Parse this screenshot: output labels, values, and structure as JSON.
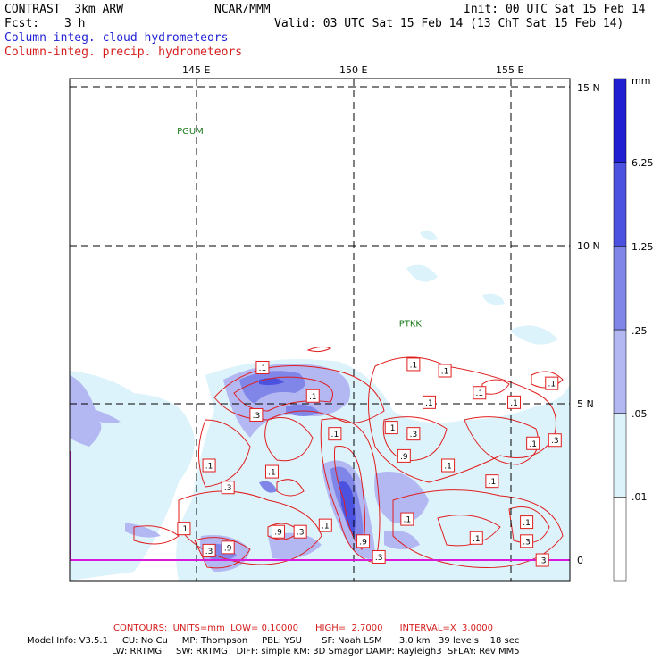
{
  "header": {
    "model": "CONTRAST  3km ARW",
    "center": "NCAR/MMM",
    "init": "Init: 00 UTC Sat 15 Feb 14",
    "fcst_label": "Fcst:",
    "fcst_value": "3 h",
    "valid": "Valid: 03 UTC Sat 15 Feb 14 (13 ChT Sat 15 Feb 14)",
    "field1": "Column-integ. cloud hydrometeors",
    "field2": "Column-integ. precip. hydrometeors"
  },
  "map": {
    "lon_labels": [
      "145 E",
      "150 E",
      "155 E"
    ],
    "lat_labels": [
      "15 N",
      "10 N",
      "5 N",
      "0"
    ],
    "stations": [
      {
        "name": "PGUM",
        "lon": 144.8,
        "lat": 13.5
      },
      {
        "name": "PTKK",
        "lon": 151.8,
        "lat": 7.4
      }
    ],
    "colors": {
      "land_shade": "#dcf3fb",
      "contour": "#e01e1e",
      "grid": "#000000",
      "frame": "#000000",
      "coast": "#d81ad8"
    },
    "contour_labels": [
      {
        "text": ".1",
        "lon": 147.1,
        "lat": 6.1
      },
      {
        "text": ".1",
        "lon": 148.7,
        "lat": 5.2
      },
      {
        "text": ".1",
        "lon": 149.4,
        "lat": 4.0
      },
      {
        "text": ".3",
        "lon": 146.9,
        "lat": 4.6
      },
      {
        "text": ".1",
        "lon": 147.4,
        "lat": 2.8
      },
      {
        "text": ".1",
        "lon": 145.4,
        "lat": 3.0
      },
      {
        "text": ".3",
        "lon": 146.0,
        "lat": 2.3
      },
      {
        "text": ".1",
        "lon": 144.6,
        "lat": 1.0
      },
      {
        "text": ".3",
        "lon": 145.4,
        "lat": 0.3
      },
      {
        "text": ".9",
        "lon": 146.0,
        "lat": 0.4
      },
      {
        "text": ".9",
        "lon": 147.6,
        "lat": 0.9
      },
      {
        "text": ".3",
        "lon": 148.3,
        "lat": 0.9
      },
      {
        "text": ".1",
        "lon": 149.1,
        "lat": 1.1
      },
      {
        "text": ".9",
        "lon": 150.3,
        "lat": 0.6
      },
      {
        "text": ".3",
        "lon": 150.8,
        "lat": 0.1
      },
      {
        "text": ".1",
        "lon": 151.7,
        "lat": 1.3
      },
      {
        "text": ".9",
        "lon": 151.6,
        "lat": 3.3
      },
      {
        "text": ".1",
        "lon": 151.2,
        "lat": 4.2
      },
      {
        "text": ".3",
        "lon": 151.9,
        "lat": 4.0
      },
      {
        "text": ".1",
        "lon": 151.9,
        "lat": 6.2
      },
      {
        "text": ".1",
        "lon": 152.4,
        "lat": 5.0
      },
      {
        "text": ".1",
        "lon": 152.9,
        "lat": 6.0
      },
      {
        "text": ".1",
        "lon": 154.0,
        "lat": 5.3
      },
      {
        "text": ".1",
        "lon": 155.1,
        "lat": 5.0
      },
      {
        "text": ".1",
        "lon": 153.0,
        "lat": 3.0
      },
      {
        "text": ".1",
        "lon": 154.4,
        "lat": 2.5
      },
      {
        "text": ".1",
        "lon": 155.7,
        "lat": 3.7
      },
      {
        "text": ".3",
        "lon": 156.4,
        "lat": 3.8
      },
      {
        "text": ".1",
        "lon": 156.3,
        "lat": 5.6
      },
      {
        "text": ".1",
        "lon": 155.5,
        "lat": 1.2
      },
      {
        "text": ".3",
        "lon": 155.5,
        "lat": 0.6
      },
      {
        "text": ".1",
        "lon": 153.9,
        "lat": 0.7
      },
      {
        "text": ".3",
        "lon": 156.0,
        "lat": 0.0
      }
    ]
  },
  "legend": {
    "unit": "mm",
    "levels": [
      ".01",
      ".05",
      ".25",
      "1.25",
      "6.25"
    ],
    "colors": [
      "#ffffff",
      "#dcf3fb",
      "#b3b8f3",
      "#7f86e8",
      "#4c52e0",
      "#2020d2"
    ]
  },
  "footer": {
    "contours": "CONTOURS:  UNITS=mm  LOW= 0.10000      HIGH=  2.7000      INTERVAL=X  3.0000",
    "model_info_1": "Model Info: V3.5.1     CU: No Cu     MP: Thompson     PBL: YSU       SF: Noah LSM      3.0 km   39 levels    18 sec",
    "model_info_2": "LW: RRTMG     SW: RRTMG   DIFF: simple KM: 3D Smagor DAMP: Rayleigh3  SFLAY: Rev MM5"
  }
}
